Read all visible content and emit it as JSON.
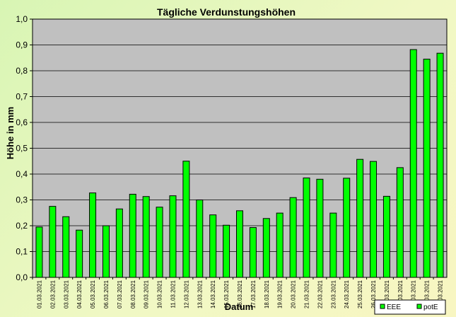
{
  "colors": {
    "page_background": "#e6f7bd",
    "plot_background": "#c0c0c0",
    "bar_fill": "#00ff00",
    "bar_stroke": "#000000",
    "gridline": "#000000"
  },
  "chart_data": {
    "type": "bar",
    "title": "Tägliche Verdunstungshöhen",
    "xlabel": "Datum",
    "ylabel": "Höhe in mm",
    "ylim": [
      0,
      1.0
    ],
    "yticks": [
      "0,0",
      "0,1",
      "0,2",
      "0,3",
      "0,4",
      "0,5",
      "0,6",
      "0,7",
      "0,8",
      "0,9",
      "1,0"
    ],
    "grid": true,
    "legend_position": "bottom-right",
    "categories": [
      "01.03.2021",
      "02.03.2021",
      "03.03.2021",
      "04.03.2021",
      "05.03.2021",
      "06.03.2021",
      "07.03.2021",
      "08.03.2021",
      "09.03.2021",
      "10.03.2021",
      "11.03.2021",
      "12.03.2021",
      "13.03.2021",
      "14.03.2021",
      "15.03.2021",
      "16.03.2021",
      "17.03.2021",
      "18.03.2021",
      "19.03.2021",
      "20.03.2021",
      "21.03.2021",
      "22.03.2021",
      "23.03.2021",
      "24.03.2021",
      "25.03.2021",
      "26.03.2021",
      "27.03.2021",
      "28.03.2021",
      "29.03.2021",
      "30.03.2021",
      "31.03.2021"
    ],
    "series": [
      {
        "name": "EEE",
        "values": [
          null,
          null,
          null,
          null,
          null,
          null,
          null,
          null,
          null,
          null,
          null,
          null,
          null,
          null,
          null,
          null,
          null,
          null,
          null,
          null,
          null,
          null,
          null,
          null,
          null,
          null,
          null,
          null,
          null,
          null,
          null
        ]
      },
      {
        "name": "potE",
        "values": [
          0.195,
          0.275,
          0.235,
          0.183,
          0.327,
          0.2,
          0.265,
          0.322,
          0.313,
          0.272,
          0.316,
          0.45,
          0.3,
          0.242,
          0.202,
          0.258,
          0.193,
          0.228,
          0.249,
          0.309,
          0.385,
          0.38,
          0.249,
          0.384,
          0.457,
          0.449,
          0.314,
          0.425,
          0.882,
          0.845,
          0.868
        ]
      }
    ]
  }
}
